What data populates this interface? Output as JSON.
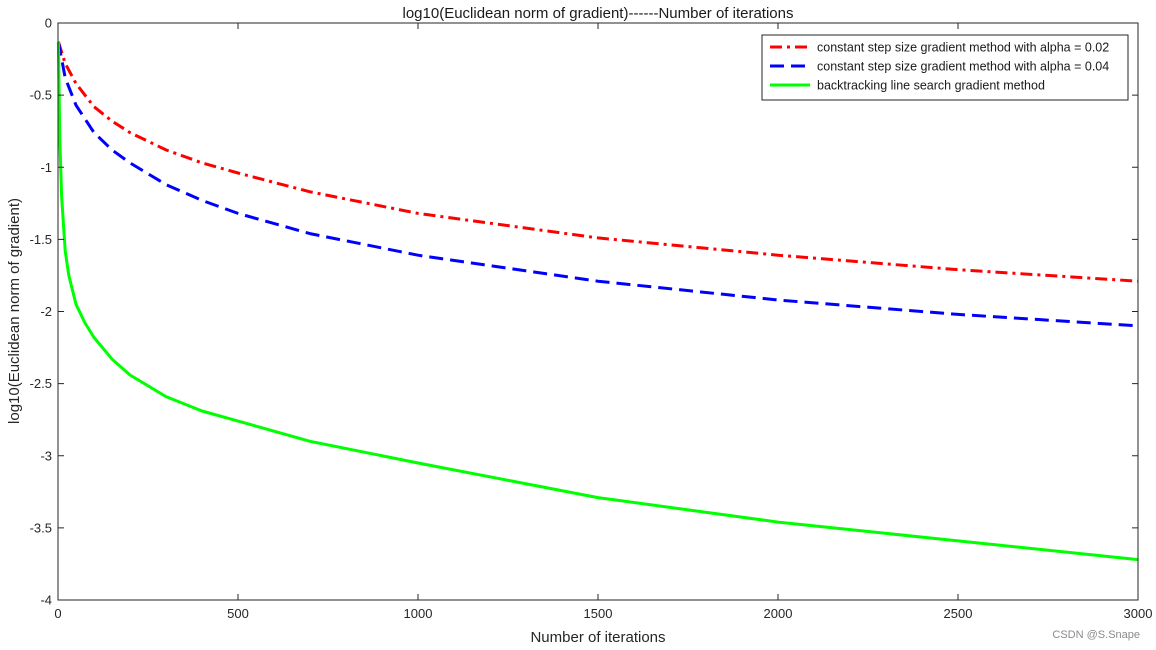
{
  "chart_data": {
    "type": "line",
    "title": "log10(Euclidean norm of gradient)------Number of iterations",
    "xlabel": "Number of iterations",
    "ylabel": "log10(Euclidean norm of gradient)",
    "xlim": [
      0,
      3000
    ],
    "ylim": [
      -4,
      0
    ],
    "xticks": [
      0,
      500,
      1000,
      1500,
      2000,
      2500,
      3000
    ],
    "yticks": [
      0,
      -0.5,
      -1,
      -1.5,
      -2,
      -2.5,
      -3,
      -3.5,
      -4
    ],
    "xtick_labels": [
      "0",
      "500",
      "1000",
      "1500",
      "2000",
      "2500",
      "3000"
    ],
    "ytick_labels": [
      "0",
      "-0.5",
      "-1",
      "-1.5",
      "-2",
      "-2.5",
      "-3",
      "-3.5",
      "-4"
    ],
    "grid": false,
    "legend_position": "top-right",
    "series": [
      {
        "name": "constant step size gradient method with alpha = 0.02",
        "color": "#ff0000",
        "style": "dashdot",
        "x": [
          1,
          20,
          50,
          100,
          150,
          200,
          300,
          400,
          500,
          700,
          1000,
          1500,
          2000,
          2500,
          3000
        ],
        "y": [
          -0.13,
          -0.28,
          -0.42,
          -0.58,
          -0.68,
          -0.76,
          -0.88,
          -0.97,
          -1.04,
          -1.17,
          -1.32,
          -1.49,
          -1.61,
          -1.71,
          -1.79
        ]
      },
      {
        "name": "constant step size gradient method with alpha = 0.04",
        "color": "#0000ff",
        "style": "dashed",
        "x": [
          1,
          20,
          50,
          100,
          150,
          200,
          300,
          400,
          500,
          700,
          1000,
          1500,
          2000,
          2500,
          3000
        ],
        "y": [
          -0.13,
          -0.38,
          -0.57,
          -0.76,
          -0.88,
          -0.97,
          -1.12,
          -1.23,
          -1.32,
          -1.46,
          -1.61,
          -1.79,
          -1.92,
          -2.02,
          -2.1
        ]
      },
      {
        "name": "backtracking line search gradient method",
        "color": "#00ff00",
        "style": "solid",
        "x": [
          1,
          5,
          10,
          20,
          30,
          50,
          75,
          100,
          150,
          200,
          300,
          400,
          500,
          700,
          1000,
          1500,
          2000,
          2500,
          3000
        ],
        "y": [
          -0.13,
          -0.8,
          -1.2,
          -1.58,
          -1.75,
          -1.95,
          -2.08,
          -2.18,
          -2.33,
          -2.44,
          -2.59,
          -2.69,
          -2.76,
          -2.9,
          -3.05,
          -3.29,
          -3.46,
          -3.59,
          -3.72
        ]
      }
    ]
  },
  "watermark": "CSDN @S.Snape"
}
